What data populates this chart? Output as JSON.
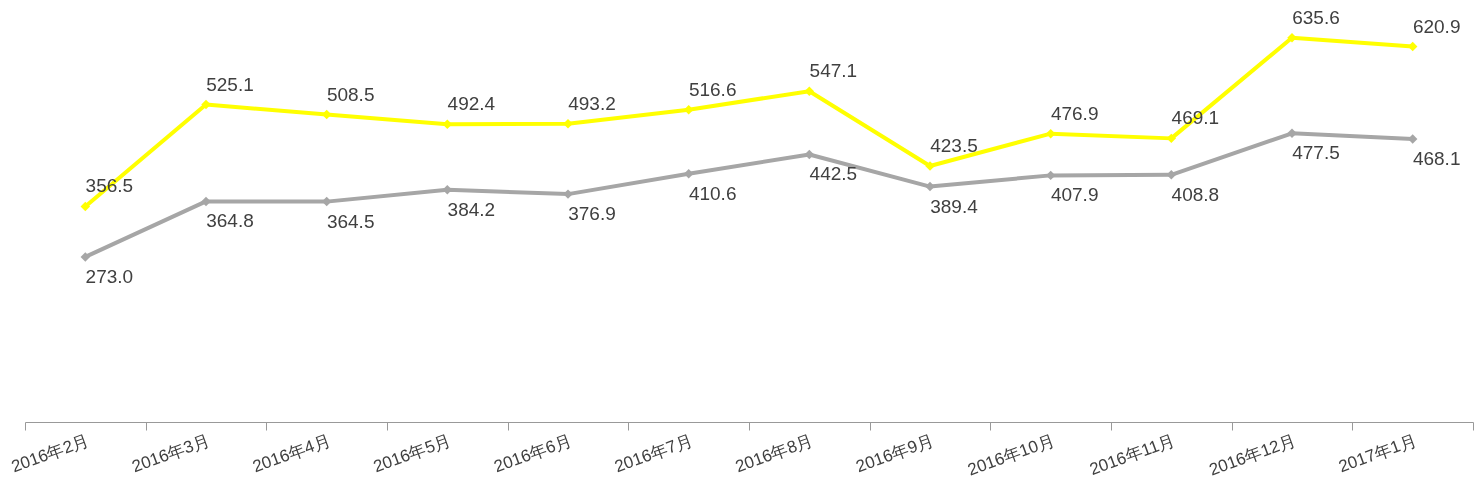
{
  "chart_data": {
    "type": "line",
    "categories": [
      "2016年2月",
      "2016年3月",
      "2016年4月",
      "2016年5月",
      "2016年6月",
      "2016年7月",
      "2016年8月",
      "2016年9月",
      "2016年10月",
      "2016年11月",
      "2016年12月",
      "2017年1月"
    ],
    "series": [
      {
        "color": "#a6a6a6",
        "values": [
          273.0,
          364.8,
          364.5,
          384.2,
          376.9,
          410.6,
          442.5,
          389.4,
          407.9,
          408.8,
          477.5,
          468.1
        ],
        "value_labels": [
          "273.0",
          "364.8",
          "364.5",
          "384.2",
          "376.9",
          "410.6",
          "442.5",
          "389.4",
          "407.9",
          "408.8",
          "477.5",
          "468.1"
        ]
      },
      {
        "color": "#ffff00",
        "values": [
          356.5,
          525.1,
          508.5,
          492.4,
          493.2,
          516.6,
          547.1,
          423.5,
          476.9,
          469.1,
          635.6,
          620.9
        ],
        "value_labels": [
          "356.5",
          "525.1",
          "508.5",
          "492.4",
          "493.2",
          "516.6",
          "547.1",
          "423.5",
          "476.9",
          "469.1",
          "635.6",
          "620.9"
        ]
      }
    ],
    "tick_labels": "x",
    "grid": false,
    "legend": false,
    "marker": "diamond",
    "line_style": "solid"
  }
}
